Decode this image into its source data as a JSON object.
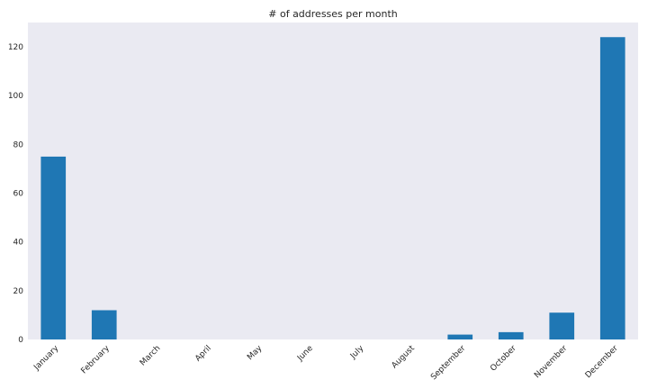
{
  "chart_data": {
    "type": "bar",
    "title": "# of addresses per month",
    "xlabel": "",
    "ylabel": "",
    "categories": [
      "January",
      "February",
      "March",
      "April",
      "May",
      "June",
      "July",
      "August",
      "September",
      "October",
      "November",
      "December"
    ],
    "values": [
      75,
      12,
      0,
      0,
      0,
      0,
      0,
      0,
      2,
      3,
      11,
      124
    ],
    "ylim": [
      0,
      130
    ],
    "yticks": [
      0,
      20,
      40,
      60,
      80,
      100,
      120
    ],
    "grid": false,
    "legend": "none",
    "colors": {
      "bar": "#1f77b4",
      "plot_background": "#eaeaf2",
      "text": "#262626"
    }
  }
}
